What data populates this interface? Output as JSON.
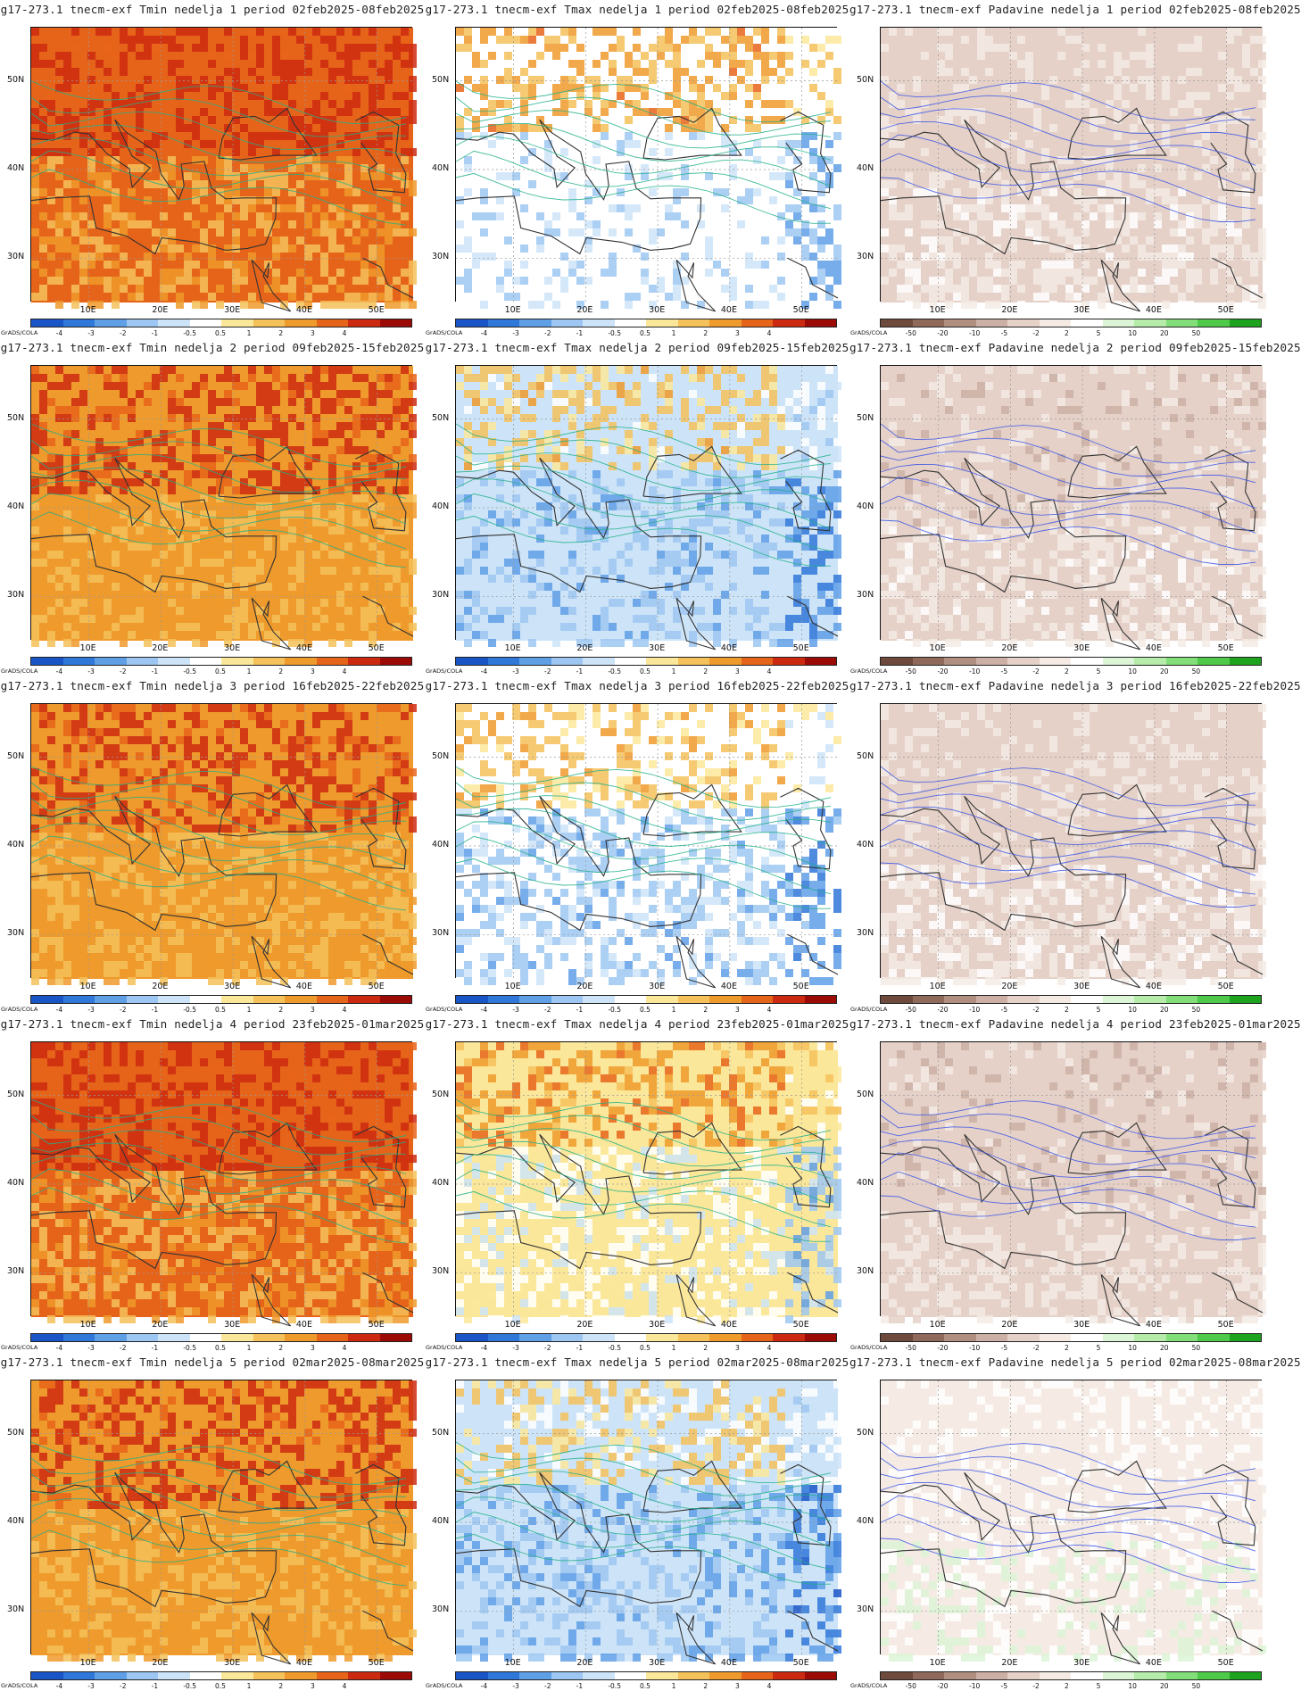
{
  "figure": {
    "model_prefix": "g17-273.1 tnecm-exf",
    "credit": "GrADS/COLA",
    "lat_labels": [
      "50N",
      "40N",
      "30N"
    ],
    "lon_labels": [
      "10E",
      "20E",
      "30E",
      "40E",
      "50E"
    ]
  },
  "variables": [
    {
      "key": "tmin",
      "name": "Tmin",
      "colorbar_labels": [
        "-4",
        "-3",
        "-2",
        "-1",
        "-0.5",
        "0.5",
        "1",
        "2",
        "3",
        "4"
      ],
      "colorbar_colors": [
        "#1a55c8",
        "#2f77d9",
        "#5f9fe6",
        "#9dc7f2",
        "#cde4f8",
        "#ffffff",
        "#fbe79a",
        "#f5c15a",
        "#ee9a2c",
        "#e6641a",
        "#cc2a10",
        "#9c0a06"
      ]
    },
    {
      "key": "tmax",
      "name": "Tmax",
      "colorbar_labels": [
        "-4",
        "-3",
        "-2",
        "-1",
        "-0.5",
        "0.5",
        "1",
        "2",
        "3",
        "4"
      ],
      "colorbar_colors": [
        "#1a55c8",
        "#2f77d9",
        "#5f9fe6",
        "#9dc7f2",
        "#cde4f8",
        "#ffffff",
        "#fbe79a",
        "#f5c15a",
        "#ee9a2c",
        "#e6641a",
        "#cc2a10",
        "#9c0a06"
      ]
    },
    {
      "key": "padavine",
      "name": "Padavine",
      "colorbar_labels": [
        "-50",
        "-20",
        "-10",
        "-5",
        "-2",
        "2",
        "5",
        "10",
        "20",
        "50"
      ],
      "colorbar_colors": [
        "#6e4a3c",
        "#8f6a5b",
        "#b08e80",
        "#ccb0a6",
        "#e5d1c8",
        "#f5ebe4",
        "#ffffff",
        "#dcf5d6",
        "#b5ecaa",
        "#82de78",
        "#4fc94a",
        "#1ea31e"
      ]
    }
  ],
  "weeks": [
    {
      "number": "1",
      "period": "02feb2025-08feb2025",
      "titles": {
        "tmin": "g17-273.1 tnecm-exf Tmin nedelja 1 period 02feb2025-08feb2025",
        "tmax": "g17-273.1 tnecm-exf Tmax nedelja 1 period 02feb2025-08feb2025",
        "padavine": "g17-273.1 tnecm-exf Padavine nedelja 1 period 02feb2025-08feb2025"
      },
      "anomaly_level": {
        "tmin": 3.2,
        "tmax": 0.4,
        "padavine": -2
      }
    },
    {
      "number": "2",
      "period": "09feb2025-15feb2025",
      "titles": {
        "tmin": "g17-273.1 tnecm-exf Tmin nedelja 2 period 09feb2025-15feb2025",
        "tmax": "g17-273.1 tnecm-exf Tmax nedelja 2 period 09feb2025-15feb2025",
        "padavine": "g17-273.1 tnecm-exf Padavine nedelja 2 period 09feb2025-15feb2025"
      },
      "anomaly_level": {
        "tmin": 3.0,
        "tmax": -0.6,
        "padavine": -3
      }
    },
    {
      "number": "3",
      "period": "16feb2025-22feb2025",
      "titles": {
        "tmin": "g17-273.1 tnecm-exf Tmin nedelja 3 period 16feb2025-22feb2025",
        "tmax": "g17-273.1 tnecm-exf Tmax nedelja 3 period 16feb2025-22feb2025",
        "padavine": "g17-273.1 tnecm-exf Padavine nedelja 3 period 16feb2025-22feb2025"
      },
      "anomaly_level": {
        "tmin": 2.9,
        "tmax": -0.4,
        "padavine": -2
      }
    },
    {
      "number": "4",
      "period": "23feb2025-01mar2025",
      "titles": {
        "tmin": "g17-273.1 tnecm-exf Tmin nedelja 4 period 23feb2025-01mar2025",
        "tmax": "g17-273.1 tnecm-exf Tmax nedelja 4 period 23feb2025-01mar2025",
        "padavine": "g17-273.1 tnecm-exf Padavine nedelja 4 period 23feb2025-01mar2025"
      },
      "anomaly_level": {
        "tmin": 3.1,
        "tmax": 0.8,
        "padavine": -4
      }
    },
    {
      "number": "5",
      "period": "02mar2025-08mar2025",
      "titles": {
        "tmin": "g17-273.1 tnecm-exf Tmin nedelja 5 period 02mar2025-08mar2025",
        "tmax": "g17-273.1 tnecm-exf Tmax nedelja 5 period 02mar2025-08mar2025",
        "padavine": "g17-273.1 tnecm-exf Padavine nedelja 5 period 02mar2025-08mar2025"
      },
      "anomaly_level": {
        "tmin": 3.0,
        "tmax": -0.8,
        "padavine": 2
      }
    }
  ]
}
